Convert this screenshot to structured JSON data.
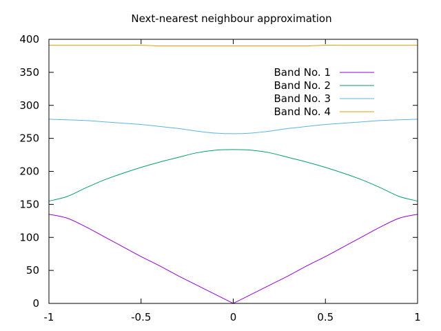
{
  "chart_data": {
    "type": "line",
    "title": "Next-nearest neighbour approximation",
    "xlabel": "",
    "ylabel": "",
    "xlim": [
      -1,
      1
    ],
    "ylim": [
      0,
      400
    ],
    "xticks": [
      "-1",
      "-0.5",
      "0",
      "0.5",
      "1"
    ],
    "yticks": [
      "0",
      "50",
      "100",
      "150",
      "200",
      "250",
      "300",
      "350",
      "400"
    ],
    "grid": false,
    "legend_position": "top-right",
    "x": [
      -1,
      -0.9,
      -0.8,
      -0.7,
      -0.6,
      -0.5,
      -0.4,
      -0.3,
      -0.2,
      -0.1,
      0,
      0.1,
      0.2,
      0.3,
      0.4,
      0.5,
      0.6,
      0.7,
      0.8,
      0.9,
      1
    ],
    "series": [
      {
        "name": "Band No. 1",
        "color": "#9400d3",
        "values": [
          135,
          129,
          116,
          101,
          86,
          71,
          57,
          42,
          28,
          14,
          0,
          14,
          28,
          42,
          57,
          71,
          86,
          101,
          116,
          129,
          135
        ]
      },
      {
        "name": "Band No. 2",
        "color": "#009e73",
        "values": [
          155,
          162,
          175,
          187,
          197,
          206,
          214,
          221,
          228,
          232,
          233,
          232,
          228,
          221,
          214,
          206,
          197,
          187,
          175,
          162,
          155
        ]
      },
      {
        "name": "Band No. 3",
        "color": "#56b4e9",
        "values": [
          279,
          278,
          277,
          275,
          273,
          271,
          268,
          265,
          261,
          258,
          257,
          258,
          261,
          265,
          268,
          271,
          273,
          275,
          277,
          278,
          279
        ]
      },
      {
        "name": "Band No. 4",
        "color": "#e69f00",
        "values": [
          391,
          391,
          391,
          391,
          391,
          391,
          390,
          390,
          390,
          390,
          390,
          390,
          390,
          390,
          390,
          391,
          391,
          391,
          391,
          391,
          391
        ]
      }
    ]
  }
}
